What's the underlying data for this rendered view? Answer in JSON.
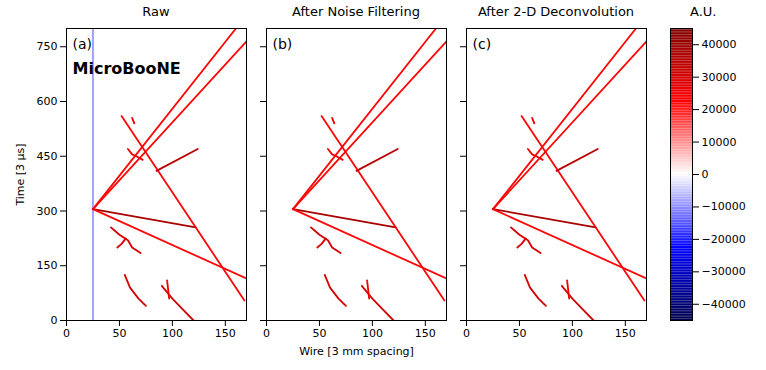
{
  "chart_data": [
    {
      "type": "line",
      "title": "Raw",
      "panel_label": "(a)",
      "annotations": [
        "MicroBooNE"
      ],
      "ylabel": "Time [3 μs]",
      "xlim": [
        0,
        170
      ],
      "ylim": [
        0,
        800
      ],
      "xticks": [
        0,
        50,
        100,
        150
      ],
      "yticks": [
        0,
        150,
        300,
        450,
        600,
        750
      ],
      "series": [
        {
          "x": [
            25,
            25
          ],
          "y": [
            0,
            800
          ],
          "value": -9000
        },
        {
          "x": [
            25,
            160
          ],
          "y": [
            305,
            800
          ],
          "value": 22000
        },
        {
          "x": [
            25,
            170
          ],
          "y": [
            305,
            765
          ],
          "value": 22000
        },
        {
          "x": [
            25,
            122
          ],
          "y": [
            305,
            255
          ],
          "value": 38000
        },
        {
          "x": [
            25,
            170
          ],
          "y": [
            305,
            115
          ],
          "value": 22000
        },
        {
          "x": [
            52,
            168
          ],
          "y": [
            560,
            55
          ],
          "value": 22000
        },
        {
          "x": [
            85,
            124
          ],
          "y": [
            410,
            470
          ],
          "value": 35000
        },
        {
          "x": [
            58,
            62,
            66,
            72
          ],
          "y": [
            470,
            455,
            450,
            440
          ],
          "value": 25000
        },
        {
          "x": [
            42,
            50,
            58,
            62,
            70
          ],
          "y": [
            255,
            235,
            220,
            200,
            185
          ],
          "value": 30000
        },
        {
          "x": [
            48,
            52,
            56
          ],
          "y": [
            200,
            210,
            225
          ],
          "value": 28000
        },
        {
          "x": [
            55,
            60,
            68,
            75
          ],
          "y": [
            125,
            90,
            60,
            40
          ],
          "value": 30000
        },
        {
          "x": [
            90,
            100,
            110,
            120
          ],
          "y": [
            95,
            60,
            30,
            0
          ],
          "value": 30000
        },
        {
          "x": [
            95,
            97
          ],
          "y": [
            110,
            60
          ],
          "value": 25000
        },
        {
          "x": [
            62,
            64
          ],
          "y": [
            555,
            540
          ],
          "value": 25000
        }
      ]
    },
    {
      "type": "line",
      "title": "After Noise Filtering",
      "panel_label": "(b)",
      "xlabel": "Wire [3 mm spacing]",
      "tick_labels": "x",
      "xlim": [
        0,
        170
      ],
      "ylim": [
        0,
        800
      ],
      "xticks": [
        0,
        50,
        100,
        150
      ],
      "yticks": [
        0,
        150,
        300,
        450,
        600,
        750
      ],
      "series": [
        {
          "x": [
            25,
            160
          ],
          "y": [
            305,
            800
          ],
          "value": 22000
        },
        {
          "x": [
            25,
            170
          ],
          "y": [
            305,
            765
          ],
          "value": 22000
        },
        {
          "x": [
            25,
            122
          ],
          "y": [
            305,
            255
          ],
          "value": 38000
        },
        {
          "x": [
            25,
            170
          ],
          "y": [
            305,
            115
          ],
          "value": 22000
        },
        {
          "x": [
            52,
            168
          ],
          "y": [
            560,
            55
          ],
          "value": 22000
        },
        {
          "x": [
            85,
            124
          ],
          "y": [
            410,
            470
          ],
          "value": 35000
        },
        {
          "x": [
            58,
            62,
            66,
            72
          ],
          "y": [
            470,
            455,
            450,
            440
          ],
          "value": 25000
        },
        {
          "x": [
            42,
            50,
            58,
            62,
            70
          ],
          "y": [
            255,
            235,
            220,
            200,
            185
          ],
          "value": 30000
        },
        {
          "x": [
            48,
            52,
            56
          ],
          "y": [
            200,
            210,
            225
          ],
          "value": 28000
        },
        {
          "x": [
            55,
            60,
            68,
            75
          ],
          "y": [
            125,
            90,
            60,
            40
          ],
          "value": 30000
        },
        {
          "x": [
            90,
            100,
            110,
            120
          ],
          "y": [
            95,
            60,
            30,
            0
          ],
          "value": 30000
        },
        {
          "x": [
            95,
            97
          ],
          "y": [
            110,
            60
          ],
          "value": 25000
        },
        {
          "x": [
            62,
            64
          ],
          "y": [
            555,
            540
          ],
          "value": 25000
        }
      ]
    },
    {
      "type": "line",
      "title": "After 2-D Deconvolution",
      "panel_label": "(c)",
      "tick_labels": "x",
      "xlim": [
        0,
        170
      ],
      "ylim": [
        0,
        800
      ],
      "xticks": [
        0,
        50,
        100,
        150
      ],
      "yticks": [
        0,
        150,
        300,
        450,
        600,
        750
      ],
      "series": [
        {
          "x": [
            25,
            160
          ],
          "y": [
            305,
            800
          ],
          "value": 22000
        },
        {
          "x": [
            25,
            170
          ],
          "y": [
            305,
            765
          ],
          "value": 22000
        },
        {
          "x": [
            25,
            122
          ],
          "y": [
            305,
            255
          ],
          "value": 38000
        },
        {
          "x": [
            25,
            170
          ],
          "y": [
            305,
            115
          ],
          "value": 22000
        },
        {
          "x": [
            52,
            168
          ],
          "y": [
            560,
            55
          ],
          "value": 22000
        },
        {
          "x": [
            85,
            124
          ],
          "y": [
            410,
            470
          ],
          "value": 35000
        },
        {
          "x": [
            58,
            62,
            66,
            72
          ],
          "y": [
            470,
            455,
            450,
            440
          ],
          "value": 25000
        },
        {
          "x": [
            42,
            50,
            58,
            62,
            70
          ],
          "y": [
            255,
            235,
            220,
            200,
            185
          ],
          "value": 30000
        },
        {
          "x": [
            48,
            52,
            56
          ],
          "y": [
            200,
            210,
            225
          ],
          "value": 28000
        },
        {
          "x": [
            55,
            60,
            68,
            75
          ],
          "y": [
            125,
            90,
            60,
            40
          ],
          "value": 30000
        },
        {
          "x": [
            90,
            100,
            110,
            120
          ],
          "y": [
            95,
            60,
            30,
            0
          ],
          "value": 30000
        },
        {
          "x": [
            95,
            97
          ],
          "y": [
            110,
            60
          ],
          "value": 25000
        },
        {
          "x": [
            62,
            64
          ],
          "y": [
            555,
            540
          ],
          "value": 25000
        }
      ]
    }
  ],
  "colorbar": {
    "label": "A.U.",
    "lim": [
      -45000,
      45000
    ],
    "ticks": [
      -40000,
      -30000,
      -20000,
      -10000,
      0,
      10000,
      20000,
      30000,
      40000
    ]
  }
}
